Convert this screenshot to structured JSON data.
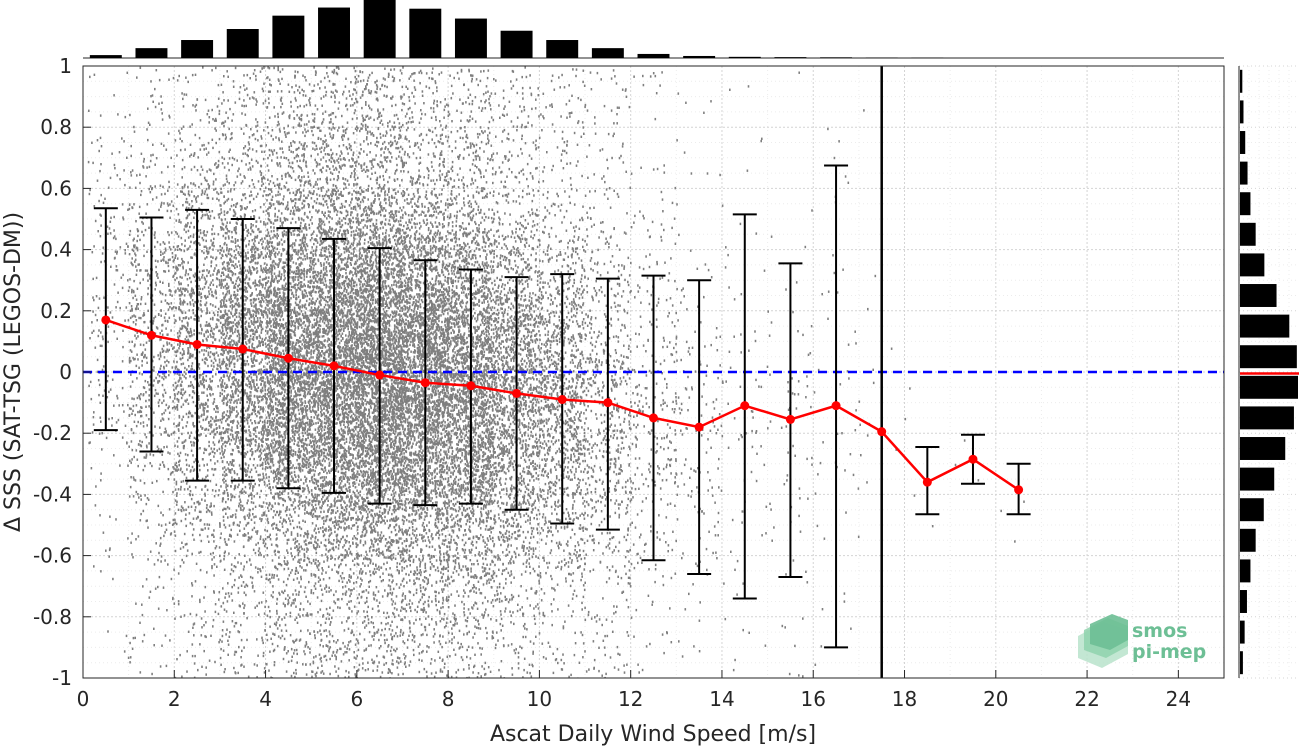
{
  "chart_data": {
    "type": "scatter",
    "xlabel": "Ascat Daily Wind Speed [m/s]",
    "ylabel": "Δ SSS (SAT-TSG (LEGOS-DM))",
    "xlim": [
      0,
      25
    ],
    "ylim": [
      -1,
      1
    ],
    "xticks": [
      0,
      2,
      4,
      6,
      8,
      10,
      12,
      14,
      16,
      18,
      20,
      22,
      24
    ],
    "xtick_labels": [
      "0",
      "2",
      "4",
      "6",
      "8",
      "10",
      "12",
      "14",
      "16",
      "18",
      "20",
      "22",
      "24"
    ],
    "yticks": [
      1,
      0.8,
      0.6,
      0.4,
      0.2,
      0,
      -0.2,
      -0.4,
      -0.6,
      -0.8,
      -1
    ],
    "ytick_labels": [
      "1",
      "0.8",
      "0.6",
      "0.4",
      "0.2",
      "0",
      "-0.2",
      "-0.4",
      "-0.6",
      "-0.8",
      "-1"
    ],
    "grid": "on",
    "reference_line_y": 0,
    "vertical_line_x": 17.5,
    "binned_mean": {
      "x": [
        0.5,
        1.5,
        2.5,
        3.5,
        4.5,
        5.5,
        6.5,
        7.5,
        8.5,
        9.5,
        10.5,
        11.5,
        12.5,
        13.5,
        14.5,
        15.5,
        16.5,
        17.5,
        18.5,
        19.5,
        20.5
      ],
      "mean": [
        0.17,
        0.12,
        0.09,
        0.075,
        0.045,
        0.02,
        -0.01,
        -0.035,
        -0.045,
        -0.07,
        -0.09,
        -0.1,
        -0.15,
        -0.18,
        -0.11,
        -0.155,
        -0.11,
        -0.195,
        -0.36,
        -0.285,
        -0.385
      ],
      "upper": [
        0.535,
        0.505,
        0.53,
        0.5,
        0.47,
        0.435,
        0.405,
        0.365,
        0.335,
        0.31,
        0.32,
        0.305,
        0.315,
        0.3,
        0.515,
        0.355,
        0.675,
        null,
        -0.245,
        -0.205,
        -0.3
      ],
      "lower": [
        -0.19,
        -0.26,
        -0.355,
        -0.355,
        -0.38,
        -0.395,
        -0.43,
        -0.435,
        -0.43,
        -0.45,
        -0.495,
        -0.515,
        -0.615,
        -0.66,
        -0.74,
        -0.67,
        -0.9,
        null,
        -0.465,
        -0.365,
        -0.465
      ]
    },
    "top_histogram": {
      "bin_centers": [
        0.5,
        1.5,
        2.5,
        3.5,
        4.5,
        5.5,
        6.5,
        7.5,
        8.5,
        9.5,
        10.5,
        11.5,
        12.5,
        13.5,
        14.5,
        15.5,
        16.5,
        17.5,
        18.5
      ],
      "relative_counts": [
        0.05,
        0.17,
        0.31,
        0.5,
        0.73,
        0.87,
        1.0,
        0.85,
        0.68,
        0.47,
        0.31,
        0.17,
        0.07,
        0.035,
        0.02,
        0.015,
        0.012,
        0.008,
        0.006
      ]
    },
    "right_histogram": {
      "bin_centers": [
        0.95,
        0.85,
        0.75,
        0.65,
        0.55,
        0.45,
        0.35,
        0.25,
        0.15,
        0.05,
        -0.05,
        -0.15,
        -0.25,
        -0.35,
        -0.45,
        -0.55,
        -0.65,
        -0.75,
        -0.85,
        -0.95
      ],
      "relative_counts": [
        0.04,
        0.06,
        0.09,
        0.13,
        0.18,
        0.27,
        0.42,
        0.63,
        0.85,
        0.98,
        1.0,
        0.93,
        0.78,
        0.59,
        0.41,
        0.27,
        0.18,
        0.12,
        0.08,
        0.05
      ],
      "mean_marker_y": -0.005
    },
    "colors": {
      "scatter": "#7f7f7f",
      "mean_line": "#ff0000",
      "error_bars": "#000000",
      "zero_line": "#0000ff",
      "histogram": "#000000",
      "grid": "#cfcfcf"
    }
  },
  "logo": {
    "line1": "smos",
    "line2": "pi-mep",
    "color": "#6dbf95"
  }
}
